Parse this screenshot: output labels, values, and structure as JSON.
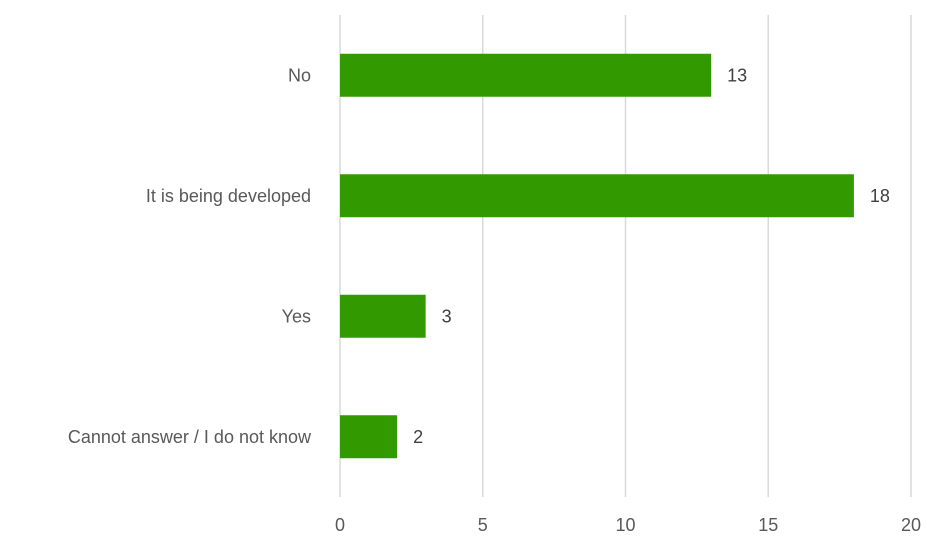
{
  "chart_data": {
    "type": "bar",
    "orientation": "horizontal",
    "title": "",
    "xlabel": "",
    "ylabel": "",
    "categories": [
      "No",
      "It is being developed",
      "Yes",
      "Cannot answer / I do not know"
    ],
    "values": [
      13,
      18,
      3,
      2
    ],
    "data_labels": [
      "13",
      "18",
      "3",
      "2"
    ],
    "xlim": [
      0,
      20
    ],
    "x_ticks": [
      "0",
      "5",
      "10",
      "15",
      "20"
    ],
    "x_tick_values": [
      0,
      5,
      10,
      15,
      20
    ],
    "grid": "vertical",
    "legend": "none",
    "bar_color": "#339900",
    "gridline_color": "#d9d9d9"
  }
}
